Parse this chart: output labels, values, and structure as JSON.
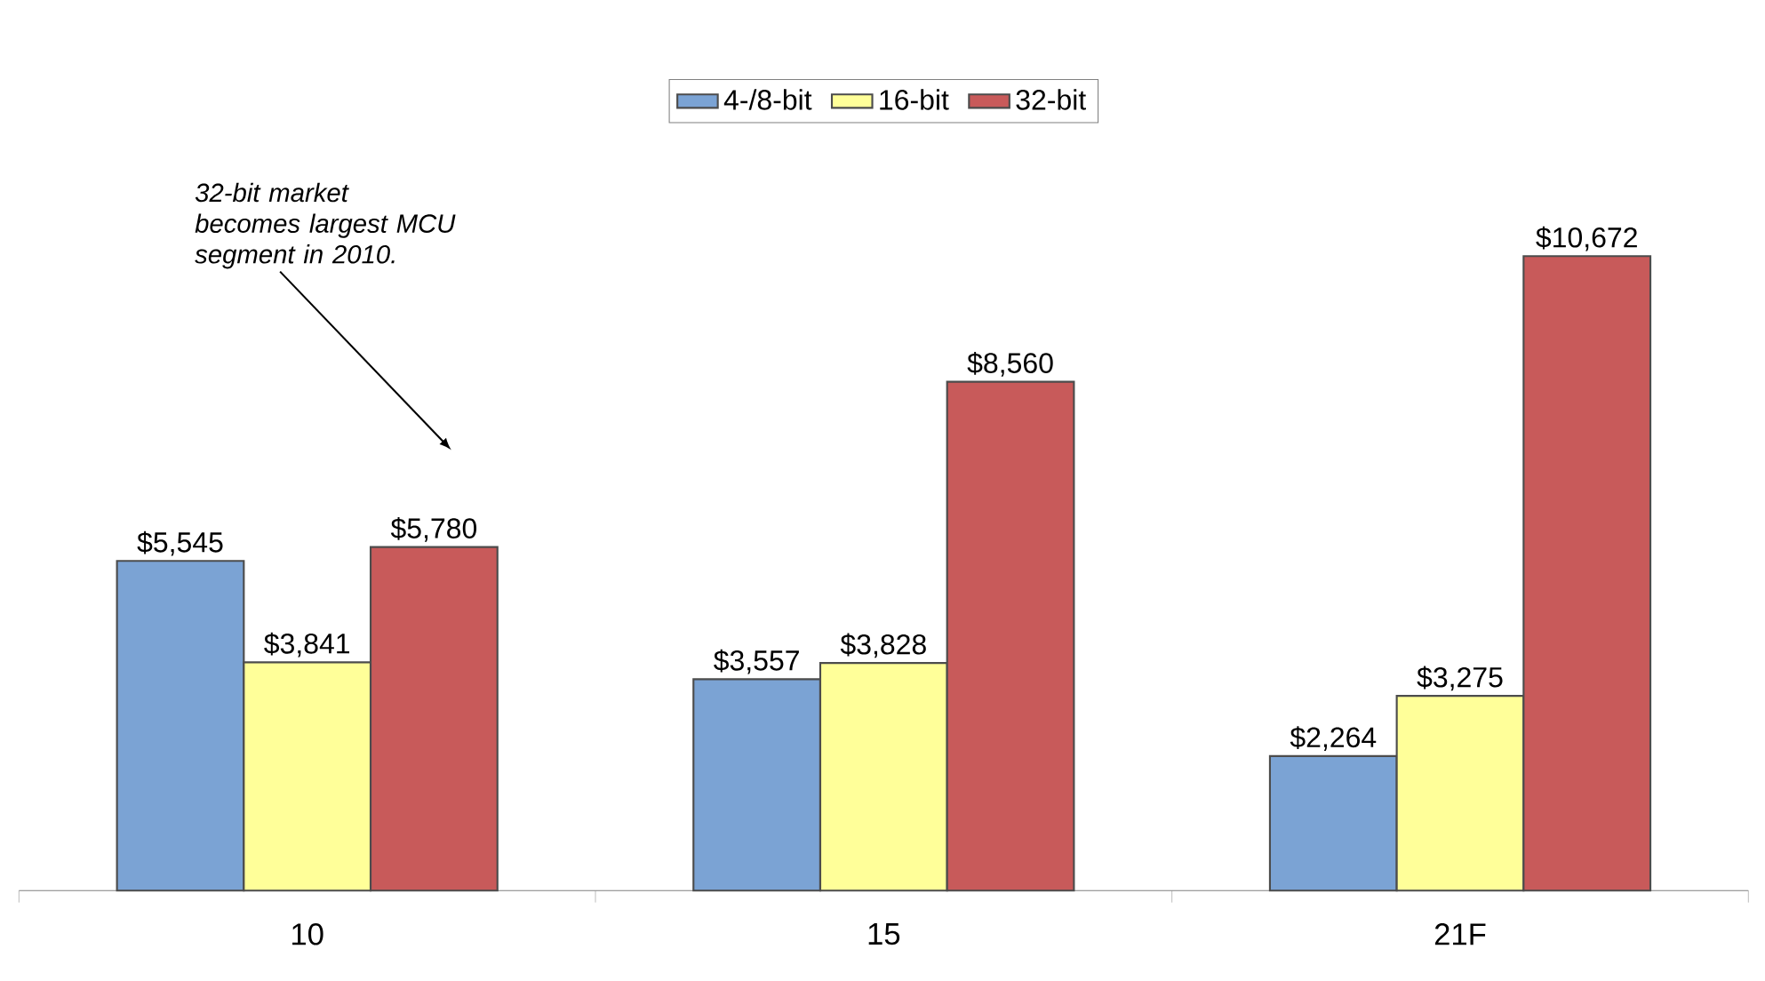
{
  "chart_data": {
    "type": "bar",
    "categories": [
      "10",
      "15",
      "21F"
    ],
    "series": [
      {
        "name": "4-/8-bit",
        "color": "#7ba3d4",
        "values": [
          5545,
          3557,
          2264
        ],
        "value_labels": [
          "$5,545",
          "$3,557",
          "$2,264"
        ]
      },
      {
        "name": "16-bit",
        "color": "#ffff99",
        "values": [
          3841,
          3828,
          3275
        ],
        "value_labels": [
          "$3,841",
          "$3,828",
          "$3,275"
        ]
      },
      {
        "name": "32-bit",
        "color": "#c85a5a",
        "values": [
          5780,
          8560,
          10672
        ],
        "value_labels": [
          "$5,780",
          "$8,560",
          "$10,672"
        ]
      }
    ],
    "tick_labels": "x",
    "legend": "top",
    "annotations": [
      "32-bit market becomes largest MCU segment in 2010."
    ]
  }
}
